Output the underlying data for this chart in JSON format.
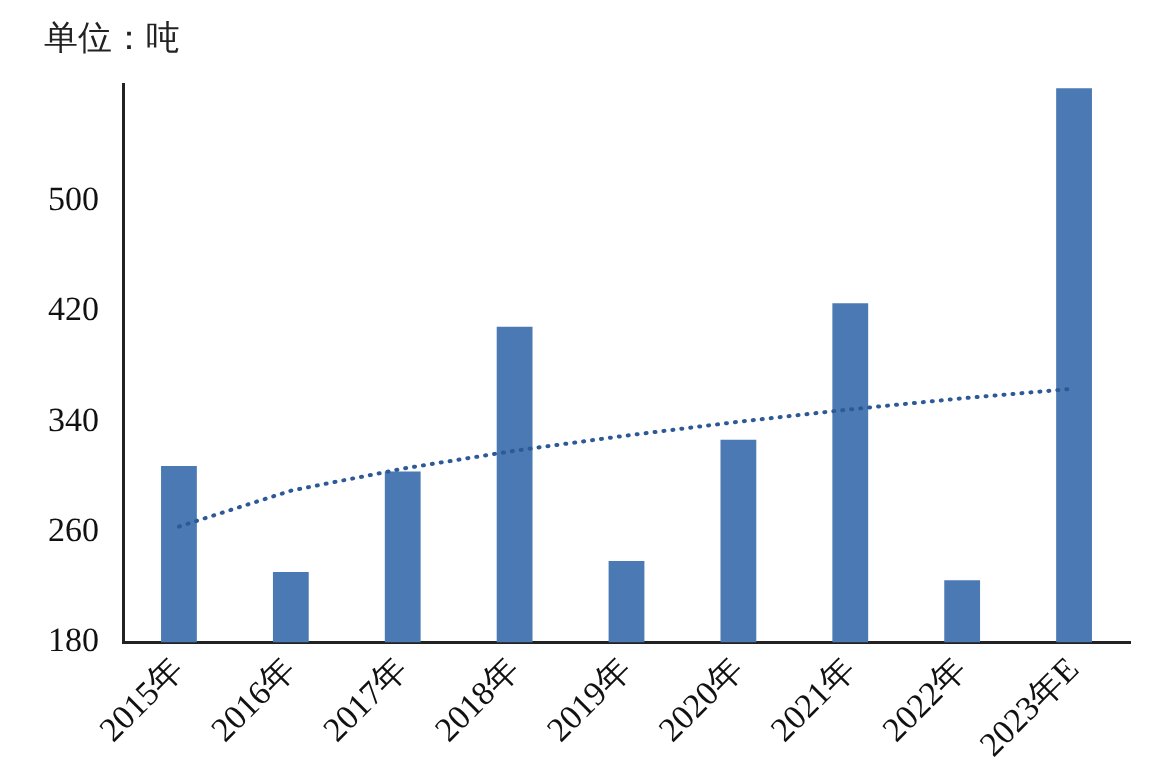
{
  "chart_data": {
    "type": "bar",
    "ylabel": "单位：吨",
    "categories": [
      "2015年",
      "2016年",
      "2017年",
      "2018年",
      "2019年",
      "2020年",
      "2021年",
      "2022年",
      "2023年E"
    ],
    "series": [
      {
        "color": "#4a79b3",
        "values": [
          308,
          231,
          304,
          409,
          239,
          327,
          426,
          225,
          582
        ]
      },
      {
        "type": "line",
        "color": "#2d5a96",
        "line_style": "dotted",
        "marker": "none",
        "values": [
          264,
          290,
          306,
          319,
          330,
          340,
          349,
          357,
          364
        ]
      }
    ],
    "ylim": [
      180,
      585
    ],
    "yticks": [
      180,
      260,
      340,
      420,
      500
    ],
    "grid": false,
    "legend": false
  }
}
